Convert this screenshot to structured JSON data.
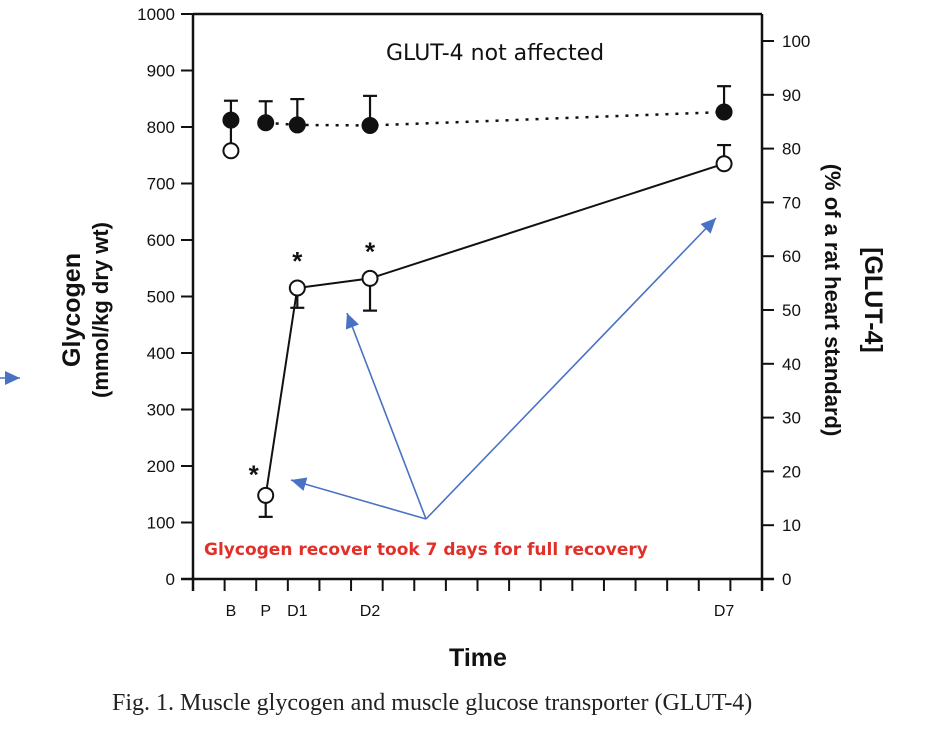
{
  "chart_data": {
    "type": "line",
    "title": "",
    "xlabel": "Time",
    "ylabel_left": [
      "Glycogen",
      "(mmol/kg dry wt)"
    ],
    "ylabel_right": [
      "[GLUT-4]",
      "(% of a rat heart standard)"
    ],
    "ylim_left": [
      0,
      1000
    ],
    "ylim_right": [
      0,
      100
    ],
    "yticks_left": [
      0,
      100,
      200,
      300,
      400,
      500,
      600,
      700,
      800,
      900,
      1000
    ],
    "yticks_right": [
      0,
      10,
      20,
      30,
      40,
      50,
      60,
      70,
      80,
      90,
      100
    ],
    "x_ticks_count": 18,
    "categories": [
      "B",
      "P",
      "D1",
      "D2",
      "D7"
    ],
    "category_positions": [
      1.2,
      2.3,
      3.3,
      5.6,
      16.8
    ],
    "grid": false,
    "series": [
      {
        "name": "Glycogen",
        "axis": "left",
        "marker": "open-circle",
        "line": "solid",
        "values": [
          758,
          148,
          515,
          532,
          735
        ],
        "error": [
          52,
          38,
          35,
          57,
          33
        ],
        "error_direction": [
          "up",
          "down",
          "down",
          "down",
          "up"
        ],
        "significant": [
          false,
          true,
          true,
          true,
          false
        ],
        "connected_from_index": 1
      },
      {
        "name": "GLUT-4",
        "axis": "right",
        "marker": "filled-circle",
        "line": "dotted",
        "values": [
          85.3,
          84.8,
          84.4,
          84.3,
          86.8
        ],
        "error": [
          3.6,
          4.0,
          4.8,
          5.5,
          4.8
        ],
        "error_direction": [
          "up",
          "up",
          "up",
          "up",
          "up"
        ],
        "connected_from_index": 1
      }
    ],
    "annotations": [
      {
        "text": "GLUT-4 not affected",
        "color": "#111111"
      },
      {
        "text": "Glycogen recover took 7 days for full recovery",
        "color": "#e0302a"
      }
    ],
    "arrow_color": "#4a72c4",
    "caption": "Fig. 1. Muscle glycogen and muscle glucose transporter (GLUT-4)"
  }
}
